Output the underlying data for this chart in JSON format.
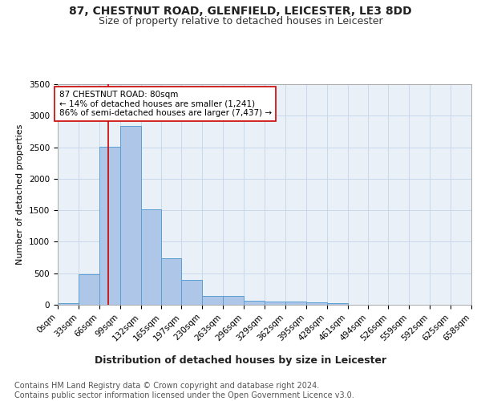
{
  "title1": "87, CHESTNUT ROAD, GLENFIELD, LEICESTER, LE3 8DD",
  "title2": "Size of property relative to detached houses in Leicester",
  "xlabel": "Distribution of detached houses by size in Leicester",
  "ylabel": "Number of detached properties",
  "footnote": "Contains HM Land Registry data © Crown copyright and database right 2024.\nContains public sector information licensed under the Open Government Licence v3.0.",
  "bin_edges": [
    0,
    33,
    66,
    99,
    132,
    165,
    197,
    230,
    263,
    296,
    329,
    362,
    395,
    428,
    461,
    494,
    526,
    559,
    592,
    625,
    658
  ],
  "bin_counts": [
    30,
    480,
    2510,
    2840,
    1510,
    735,
    390,
    145,
    145,
    60,
    55,
    55,
    35,
    30,
    0,
    0,
    0,
    0,
    0,
    0
  ],
  "bar_color": "#aec6e8",
  "bar_edge_color": "#5a9fd4",
  "grid_color": "#c8d8ea",
  "bg_color": "#eaf0f8",
  "red_line_x": 80,
  "annotation_text": "87 CHESTNUT ROAD: 80sqm\n← 14% of detached houses are smaller (1,241)\n86% of semi-detached houses are larger (7,437) →",
  "annotation_box_color": "#ffffff",
  "annotation_box_edge": "#cc0000",
  "ylim": [
    0,
    3500
  ],
  "title1_fontsize": 10,
  "title2_fontsize": 9,
  "xlabel_fontsize": 9,
  "ylabel_fontsize": 8,
  "tick_fontsize": 7.5,
  "annot_fontsize": 7.5,
  "footnote_fontsize": 7
}
